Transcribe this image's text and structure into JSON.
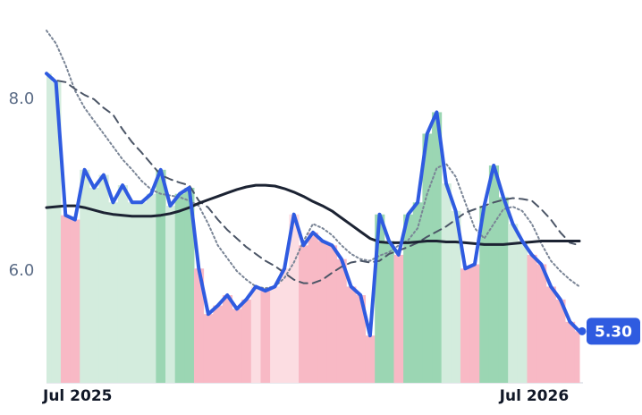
{
  "chart_data": {
    "type": "line",
    "categories": [
      "Jul 2025",
      null,
      null,
      null,
      null,
      null,
      null,
      null,
      null,
      null,
      null,
      null,
      null,
      null,
      null,
      null,
      null,
      null,
      null,
      null,
      null,
      null,
      null,
      null,
      null,
      null,
      null,
      null,
      null,
      null,
      null,
      null,
      null,
      null,
      null,
      null,
      null,
      null,
      null,
      null,
      null,
      null,
      null,
      null,
      null,
      null,
      null,
      null,
      null,
      null,
      null,
      null,
      "Jul 2026",
      null,
      null,
      null,
      null
    ],
    "ylim": [
      4.7,
      8.85
    ],
    "yticks": [
      {
        "value": 6,
        "label": "6.0"
      },
      {
        "value": 8,
        "label": "8.0"
      }
    ],
    "series": [
      {
        "color": "#2f5be0",
        "values": [
          8.3,
          8.2,
          6.65,
          6.6,
          7.18,
          6.97,
          7.12,
          6.8,
          7.0,
          6.8,
          6.8,
          6.9,
          7.18,
          6.76,
          6.9,
          6.97,
          6.03,
          5.5,
          5.6,
          5.72,
          5.56,
          5.67,
          5.82,
          5.77,
          5.82,
          6.03,
          6.66,
          6.3,
          6.45,
          6.35,
          6.3,
          6.14,
          5.82,
          5.72,
          5.25,
          6.66,
          6.35,
          6.19,
          6.66,
          6.8,
          7.6,
          7.85,
          7.02,
          6.7,
          6.03,
          6.08,
          6.76,
          7.23,
          6.86,
          6.55,
          6.35,
          6.19,
          6.08,
          5.82,
          5.67,
          5.41,
          5.3
        ]
      },
      {
        "color": "#1c2333",
        "values": [
          6.74,
          6.75,
          6.76,
          6.76,
          6.74,
          6.71,
          6.68,
          6.66,
          6.65,
          6.64,
          6.64,
          6.64,
          6.65,
          6.67,
          6.7,
          6.74,
          6.79,
          6.83,
          6.87,
          6.91,
          6.95,
          6.98,
          7.0,
          7.0,
          6.99,
          6.96,
          6.92,
          6.87,
          6.81,
          6.76,
          6.7,
          6.62,
          6.54,
          6.46,
          6.38,
          6.34,
          6.33,
          6.33,
          6.33,
          6.34,
          6.35,
          6.35,
          6.34,
          6.34,
          6.33,
          6.32,
          6.31,
          6.31,
          6.31,
          6.32,
          6.33,
          6.34,
          6.35,
          6.35,
          6.35,
          6.35,
          6.35
        ]
      },
      {
        "color": "#4b5566",
        "dash": "dashed",
        "values": [
          8.3,
          8.22,
          8.2,
          8.12,
          8.05,
          8.0,
          7.9,
          7.82,
          7.65,
          7.5,
          7.38,
          7.25,
          7.12,
          7.07,
          7.03,
          7.0,
          6.82,
          6.74,
          6.6,
          6.48,
          6.38,
          6.28,
          6.2,
          6.12,
          6.06,
          5.98,
          5.9,
          5.86,
          5.86,
          5.9,
          5.98,
          6.05,
          6.1,
          6.12,
          6.1,
          6.12,
          6.2,
          6.24,
          6.28,
          6.33,
          6.4,
          6.46,
          6.52,
          6.6,
          6.68,
          6.72,
          6.76,
          6.8,
          6.83,
          6.85,
          6.84,
          6.82,
          6.72,
          6.6,
          6.45,
          6.33,
          6.3
        ]
      },
      {
        "color": "#7a8596",
        "dash": "dotted",
        "values": [
          8.8,
          8.65,
          8.4,
          8.1,
          7.9,
          7.75,
          7.6,
          7.45,
          7.3,
          7.18,
          7.05,
          6.95,
          6.9,
          6.88,
          6.86,
          6.82,
          6.76,
          6.55,
          6.3,
          6.15,
          6.0,
          5.9,
          5.82,
          5.8,
          5.82,
          5.92,
          6.1,
          6.35,
          6.55,
          6.5,
          6.42,
          6.3,
          6.2,
          6.14,
          6.12,
          6.18,
          6.22,
          6.3,
          6.36,
          6.5,
          6.9,
          7.2,
          7.25,
          7.1,
          6.8,
          6.5,
          6.38,
          6.55,
          6.72,
          6.75,
          6.7,
          6.55,
          6.32,
          6.12,
          6.0,
          5.9,
          5.82
        ]
      }
    ],
    "fill_colors": {
      "up_strong": "#9bd6b3",
      "up_weak": "#d3ecdd",
      "down_strong": "#f8b9c5",
      "down_weak": "#fcdde2"
    },
    "end_label": "5.30"
  }
}
